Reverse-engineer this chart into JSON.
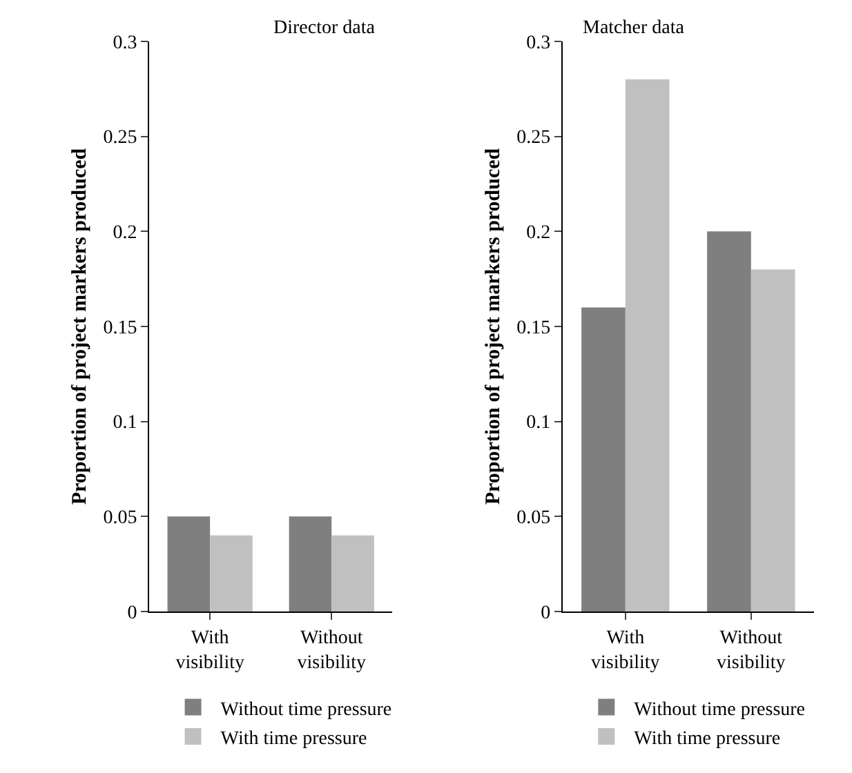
{
  "chart_data": [
    {
      "type": "bar",
      "title": "Director data",
      "ylabel": "Proportion of project markers produced",
      "categories": [
        "With visibility",
        "Without visibility"
      ],
      "series": [
        {
          "name": "Without time pressure",
          "color": "#7f7f7f",
          "values": [
            0.05,
            0.05
          ]
        },
        {
          "name": "With time pressure",
          "color": "#c0c0c0",
          "values": [
            0.04,
            0.04
          ]
        }
      ],
      "ylim": [
        0,
        0.3
      ],
      "yticks": [
        0,
        0.05,
        0.1,
        0.15,
        0.2,
        0.25,
        0.3
      ],
      "legend": "bottom"
    },
    {
      "type": "bar",
      "title": "Matcher data",
      "ylabel": "Proportion of project markers produced",
      "categories": [
        "With visibility",
        "Without visibility"
      ],
      "series": [
        {
          "name": "Without time pressure",
          "color": "#7f7f7f",
          "values": [
            0.16,
            0.2
          ]
        },
        {
          "name": "With time pressure",
          "color": "#c0c0c0",
          "values": [
            0.28,
            0.18
          ]
        }
      ],
      "ylim": [
        0,
        0.3
      ],
      "yticks": [
        0,
        0.05,
        0.1,
        0.15,
        0.2,
        0.25,
        0.3
      ],
      "legend": "bottom"
    }
  ]
}
